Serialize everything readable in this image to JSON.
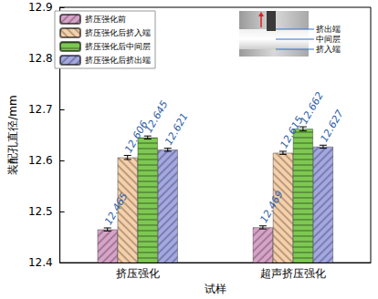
{
  "chart_data": {
    "type": "bar",
    "x_label": "试样",
    "y_label": "装配孔直径/mm",
    "categories": [
      "挤压强化",
      "超声挤压强化"
    ],
    "series": [
      {
        "name": "挤压强化前",
        "color": "#d8a3c8",
        "values": [
          12.465,
          12.469
        ],
        "errors": [
          0.003,
          0.003
        ]
      },
      {
        "name": "挤压强化后挤入端",
        "color": "#f6d0aa",
        "values": [
          12.606,
          12.615
        ],
        "errors": [
          0.004,
          0.003
        ]
      },
      {
        "name": "挤压强化后中间层",
        "color": "#7dc852",
        "values": [
          12.645,
          12.662
        ],
        "errors": [
          0.003,
          0.004
        ]
      },
      {
        "name": "挤压强化后挤出端",
        "color": "#a3a8e2",
        "values": [
          12.621,
          12.627
        ],
        "errors": [
          0.003,
          0.003
        ]
      }
    ],
    "ylim": [
      12.4,
      12.9
    ],
    "yticks": [
      12.4,
      12.5,
      12.6,
      12.7,
      12.8,
      12.9
    ],
    "grid": false,
    "legend": "upper left",
    "data_labels": true,
    "annotations": [
      "挤出端",
      "中间层",
      "挤入端"
    ]
  }
}
